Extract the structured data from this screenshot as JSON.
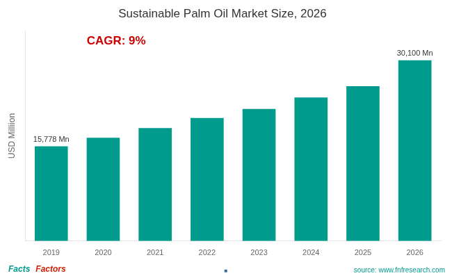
{
  "chart_data": {
    "type": "bar",
    "title": "Sustainable Palm Oil Market Size, 2026",
    "categories": [
      "2019",
      "2020",
      "2021",
      "2022",
      "2023",
      "2024",
      "2025",
      "2026"
    ],
    "values": [
      15778,
      17200,
      18800,
      20500,
      22000,
      23900,
      25800,
      30100
    ],
    "value_labels": [
      "15,778 Mn",
      null,
      null,
      null,
      null,
      null,
      null,
      "30,100 Mn"
    ],
    "color": "#009B8D",
    "y_label": "USD Milliion",
    "ylim": [
      0,
      35000
    ],
    "tick_labels": "x",
    "grid": false,
    "annotations": [
      {
        "text": "CAGR: 9%",
        "color": "#CC0000"
      },
      {
        "text": "Facts",
        "color": "#009B8D"
      },
      {
        "text": "Factors",
        "color": "#CC2200"
      },
      {
        "text": "■",
        "color": "#336699"
      },
      {
        "text": "source: www.fnfresearch.com",
        "color": "#009B8D"
      }
    ]
  }
}
